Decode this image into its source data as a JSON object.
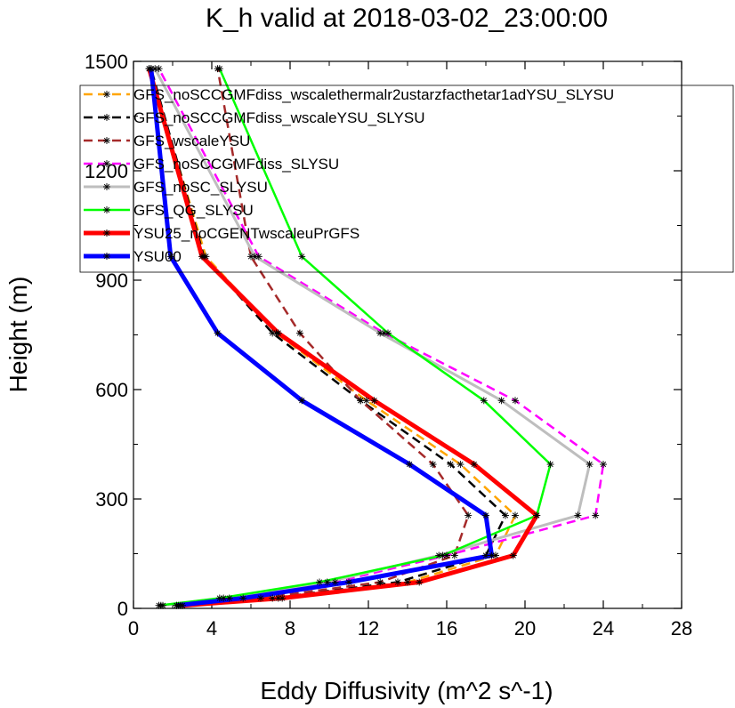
{
  "chart_data": {
    "type": "line",
    "title": "K_h valid at 2018-03-02_23:00:00",
    "xlabel": "Eddy Diffusivity (m^2 s^-1)",
    "ylabel": "Height (m)",
    "xlim": [
      0,
      28
    ],
    "ylim": [
      0,
      1500
    ],
    "xticks": [
      "0",
      "4",
      "8",
      "12",
      "16",
      "20",
      "24",
      "28"
    ],
    "yticks": [
      "0",
      "300",
      "600",
      "900",
      "1200",
      "1500"
    ],
    "grid": false,
    "legend": "top-left",
    "heights": [
      8,
      28,
      72,
      145,
      255,
      395,
      570,
      755,
      965,
      1480
    ],
    "series": [
      {
        "name": "GFS_noSCCGMFdiss_wscalethermalr2ustarzfacthetar1adYSU_SLYSU",
        "color": "#ffa500",
        "dashed": true,
        "width": 2.5,
        "values": [
          2.4,
          7.4,
          14.0,
          18.5,
          19.5,
          16.7,
          11.9,
          7.3,
          3.7,
          0.8
        ]
      },
      {
        "name": "GFS_noSCCGMFdiss_wscaleYSU_SLYSU",
        "color": "#000000",
        "dashed": true,
        "width": 2.5,
        "values": [
          2.3,
          7.1,
          13.5,
          18.0,
          19.0,
          16.2,
          11.6,
          7.1,
          3.6,
          0.9
        ]
      },
      {
        "name": "GFS_wscaleYSU",
        "color": "#a52a2a",
        "dashed": true,
        "width": 2.5,
        "values": [
          2.2,
          6.5,
          12.6,
          16.4,
          17.1,
          15.3,
          11.6,
          8.5,
          6.0,
          4.3
        ]
      },
      {
        "name": "GFS_noSCCGMFdiss_SLYSU",
        "color": "#ff00ff",
        "dashed": true,
        "width": 2.5,
        "values": [
          1.5,
          4.9,
          10.3,
          16.0,
          23.6,
          24.0,
          19.5,
          12.8,
          6.4,
          1.3
        ]
      },
      {
        "name": "GFS_noSC_SLYSU",
        "color": "#bebebe",
        "dashed": false,
        "width": 3,
        "values": [
          1.4,
          4.6,
          9.9,
          15.6,
          22.7,
          23.3,
          18.8,
          12.6,
          6.2,
          1.1
        ]
      },
      {
        "name": "GFS_QG_SLYSU",
        "color": "#00ff00",
        "dashed": false,
        "width": 2.5,
        "values": [
          1.3,
          4.4,
          9.5,
          15.8,
          20.6,
          21.3,
          17.9,
          13.0,
          8.6,
          4.4
        ]
      },
      {
        "name": "YSU25_noCGENTwscaleuPrGFS",
        "color": "#ff0000",
        "dashed": false,
        "width": 5,
        "values": [
          2.5,
          7.6,
          14.6,
          19.4,
          20.6,
          17.4,
          12.3,
          7.4,
          3.5,
          0.8
        ]
      },
      {
        "name": "YSU00",
        "color": "#0000ff",
        "dashed": false,
        "width": 5,
        "values": [
          2.2,
          5.6,
          11.0,
          18.3,
          18.0,
          14.1,
          8.6,
          4.3,
          1.9,
          0.9
        ]
      }
    ]
  }
}
